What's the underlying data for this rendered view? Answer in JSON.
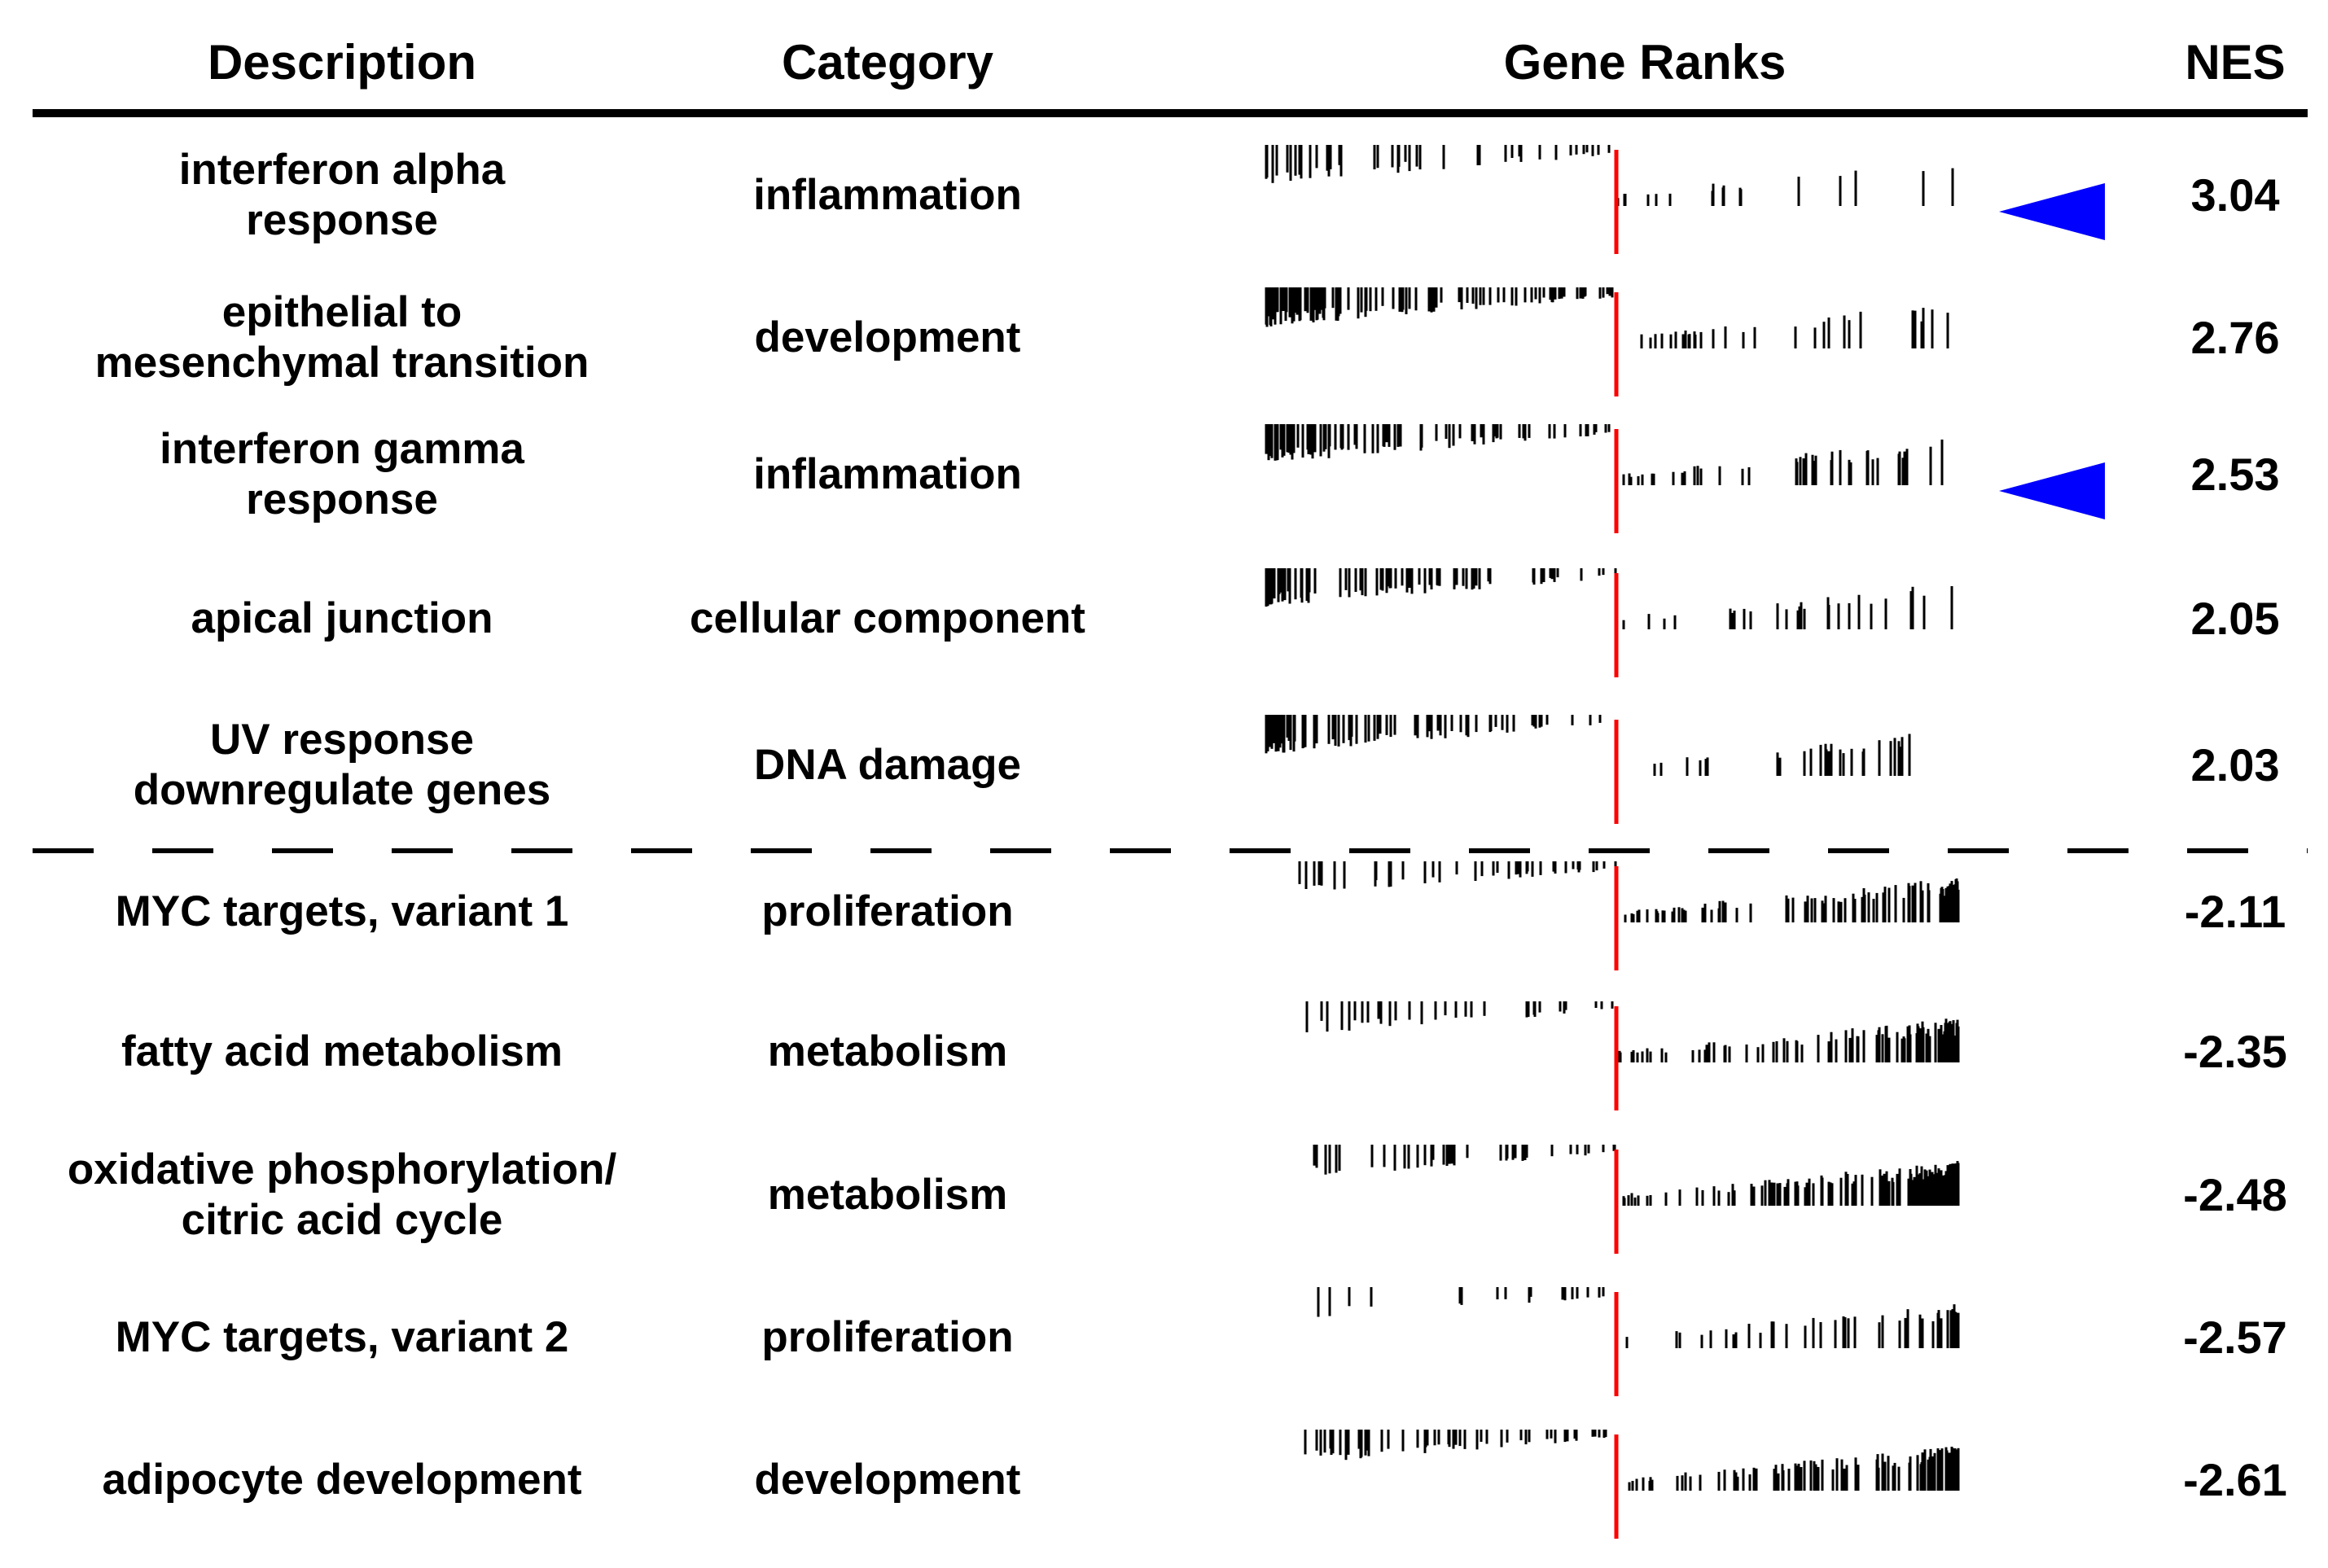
{
  "chart_data": {
    "type": "table",
    "title": "",
    "columns": {
      "description": "Description",
      "category": "Category",
      "gene_ranks": "Gene Ranks",
      "nes": "NES"
    },
    "rows": [
      {
        "description": "interferon alpha response",
        "description_lines": [
          "interferon alpha",
          "response"
        ],
        "category": "inflammation",
        "nes": "3.04",
        "nes_value": 3.04,
        "flag": "blue-triangle",
        "direction": "up",
        "hits": 62,
        "density": 0.3
      },
      {
        "description": "epithelial to mesenchymal transition",
        "description_lines": [
          "epithelial to",
          "mesenchymal transition"
        ],
        "category": "development",
        "nes": "2.76",
        "nes_value": 2.76,
        "flag": "",
        "direction": "up",
        "hits": 150,
        "density": 0.6
      },
      {
        "description": "interferon gamma response",
        "description_lines": [
          "interferon gamma",
          "response"
        ],
        "category": "inflammation",
        "nes": "2.53",
        "nes_value": 2.53,
        "flag": "blue-triangle",
        "direction": "up",
        "hits": 130,
        "density": 0.55
      },
      {
        "description": "apical junction",
        "description_lines": [
          "apical junction"
        ],
        "category": "cellular component",
        "nes": "2.05",
        "nes_value": 2.05,
        "flag": "",
        "direction": "up",
        "hits": 120,
        "density": 0.7
      },
      {
        "description": "UV response downregulate genes",
        "description_lines": [
          "UV response",
          "downregulate genes"
        ],
        "category": "DNA damage",
        "nes": "2.03",
        "nes_value": 2.03,
        "flag": "",
        "direction": "up",
        "hits": 120,
        "density": 0.75
      },
      {
        "description": "MYC targets, variant 1",
        "description_lines": [
          "MYC targets, variant 1"
        ],
        "category": "proliferation",
        "nes": "-2.11",
        "nes_value": -2.11,
        "flag": "",
        "direction": "down",
        "hits": 140,
        "density": 0.6
      },
      {
        "description": "fatty acid metabolism",
        "description_lines": [
          "fatty acid metabolism"
        ],
        "category": "metabolism",
        "nes": "-2.35",
        "nes_value": -2.35,
        "flag": "",
        "direction": "down",
        "hits": 130,
        "density": 0.65
      },
      {
        "description": "oxidative phosphorylation/ citric acid cycle",
        "description_lines": [
          "oxidative phosphorylation/",
          "citric acid cycle"
        ],
        "category": "metabolism",
        "nes": "-2.48",
        "nes_value": -2.48,
        "flag": "",
        "direction": "down",
        "hits": 170,
        "density": 0.6
      },
      {
        "description": "MYC targets, variant 2",
        "description_lines": [
          "MYC targets, variant 2"
        ],
        "category": "proliferation",
        "nes": "-2.57",
        "nes_value": -2.57,
        "flag": "",
        "direction": "down",
        "hits": 60,
        "density": 0.3
      },
      {
        "description": "adipocyte development",
        "description_lines": [
          "adipocyte development"
        ],
        "category": "development",
        "nes": "-2.61",
        "nes_value": -2.61,
        "flag": "",
        "direction": "down",
        "hits": 160,
        "density": 0.6
      }
    ],
    "separator_after_row": 5,
    "colors": {
      "divider": "#ff0000",
      "flag": "#0000ff",
      "bars": "#000000"
    }
  }
}
